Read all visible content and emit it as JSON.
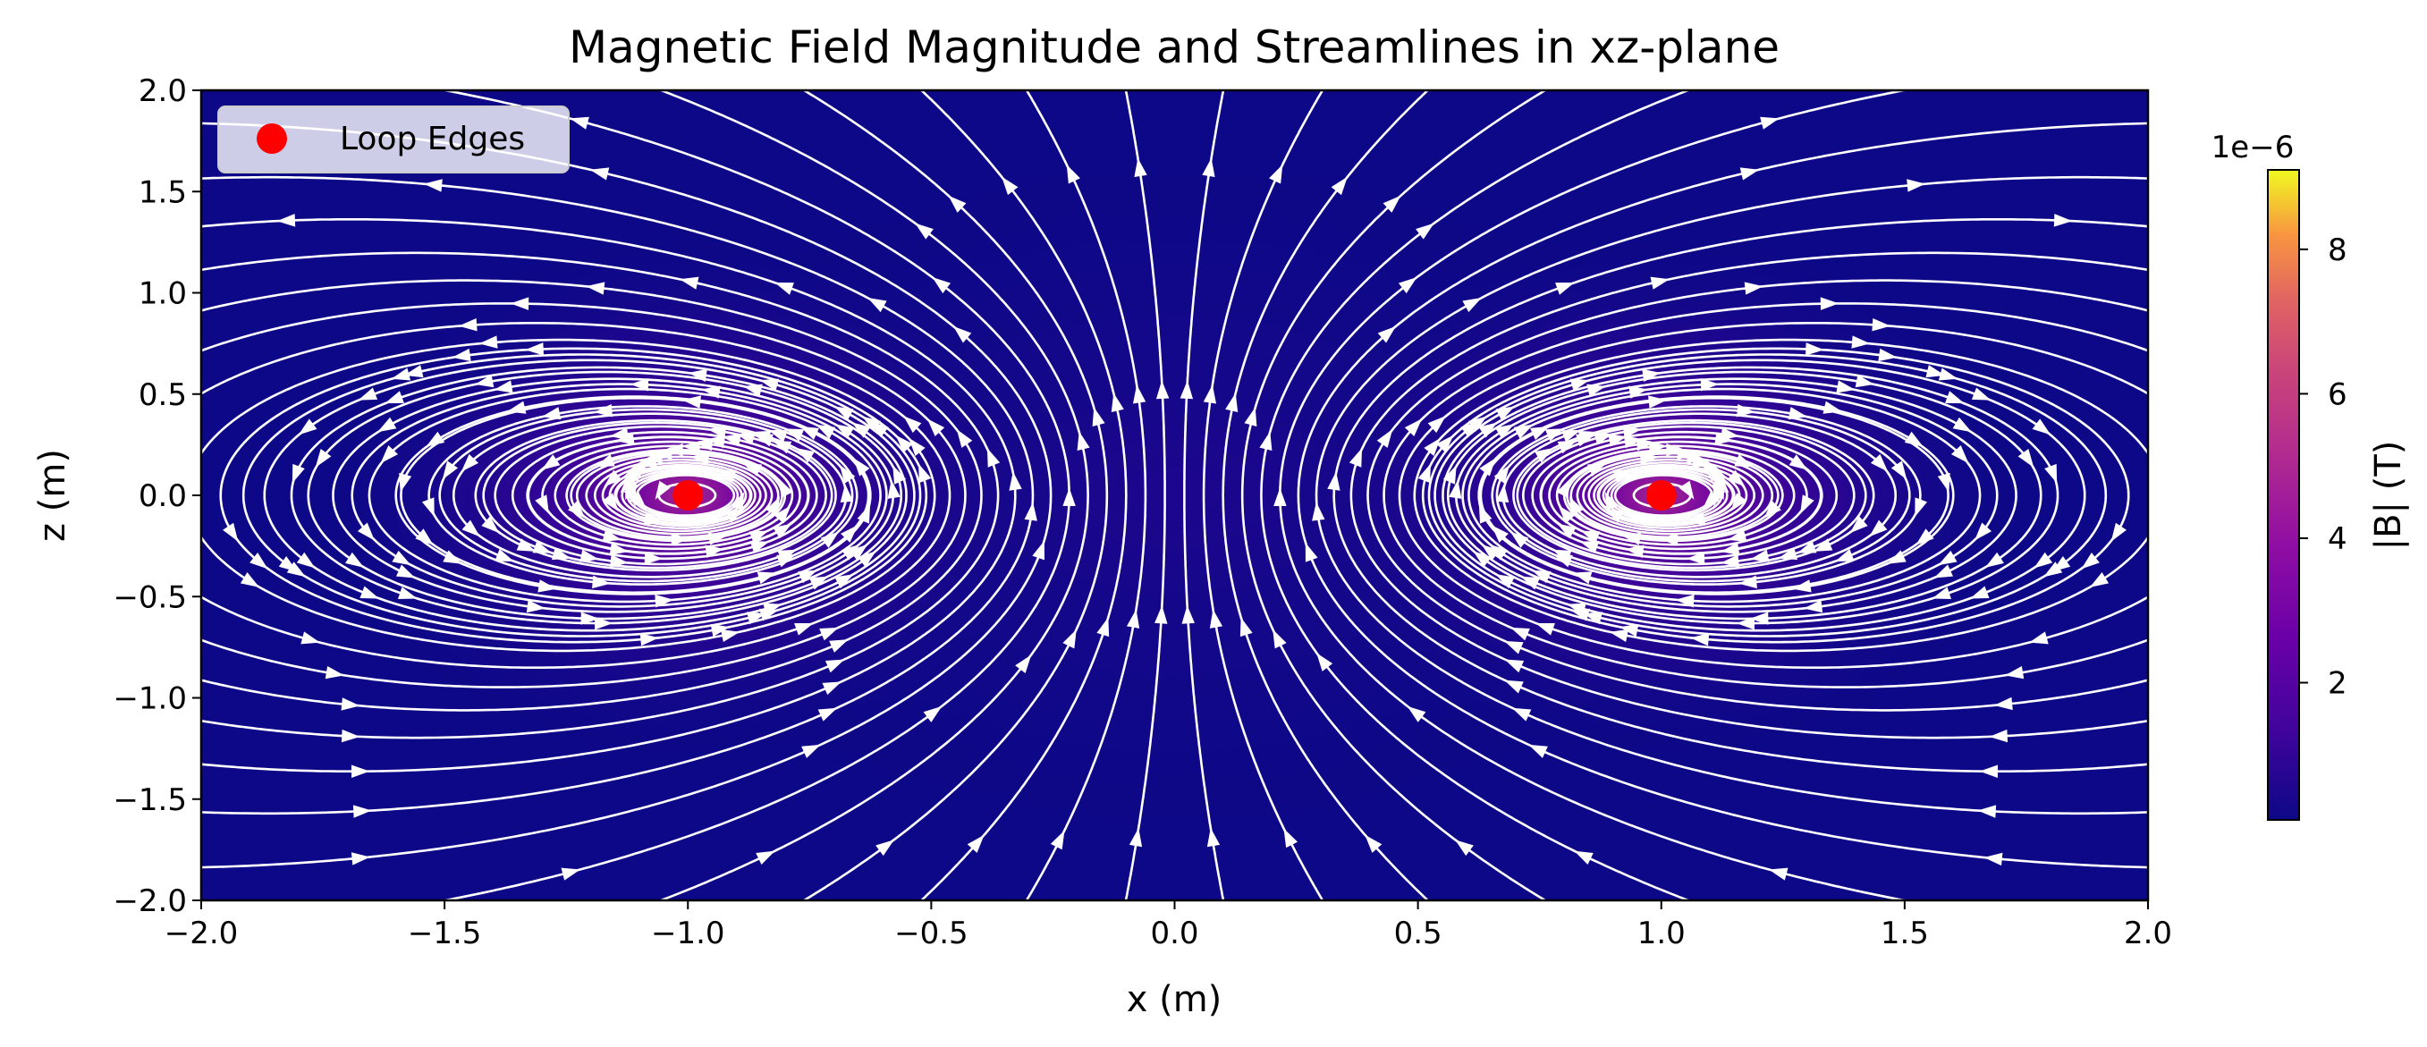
{
  "chart_data": {
    "type": "heatmap",
    "title": "Magnetic Field Magnitude and Streamlines in xz-plane",
    "xlabel": "x (m)",
    "ylabel": "z (m)",
    "xlim": [
      -2.0,
      2.0
    ],
    "ylim": [
      -2.0,
      2.0
    ],
    "x_ticks": [
      "−2.0",
      "−1.5",
      "−1.0",
      "−0.5",
      "0.0",
      "0.5",
      "1.0",
      "1.5",
      "2.0"
    ],
    "y_ticks": [
      "−2.0",
      "−1.5",
      "−1.0",
      "−0.5",
      "0.0",
      "0.5",
      "1.0",
      "1.5",
      "2.0"
    ],
    "x_tick_values": [
      -2.0,
      -1.5,
      -1.0,
      -0.5,
      0.0,
      0.5,
      1.0,
      1.5,
      2.0
    ],
    "y_tick_values": [
      -2.0,
      -1.5,
      -1.0,
      -0.5,
      0.0,
      0.5,
      1.0,
      1.5,
      2.0
    ],
    "colormap": "plasma",
    "colorbar": {
      "label": "|B| (T)",
      "offset_text": "1e−6",
      "ticks": [
        "2",
        "4",
        "6",
        "8"
      ],
      "tick_values": [
        2,
        4,
        6,
        8
      ],
      "range": [
        0.1,
        9.1
      ]
    },
    "streamline_color": "#ffffff",
    "markers": {
      "name": "Loop Edges",
      "color": "#ff0000",
      "points": [
        {
          "x": -1.0,
          "z": 0.0
        },
        {
          "x": 1.0,
          "z": 0.0
        }
      ]
    },
    "legend_position": "top-left",
    "grid": false
  }
}
